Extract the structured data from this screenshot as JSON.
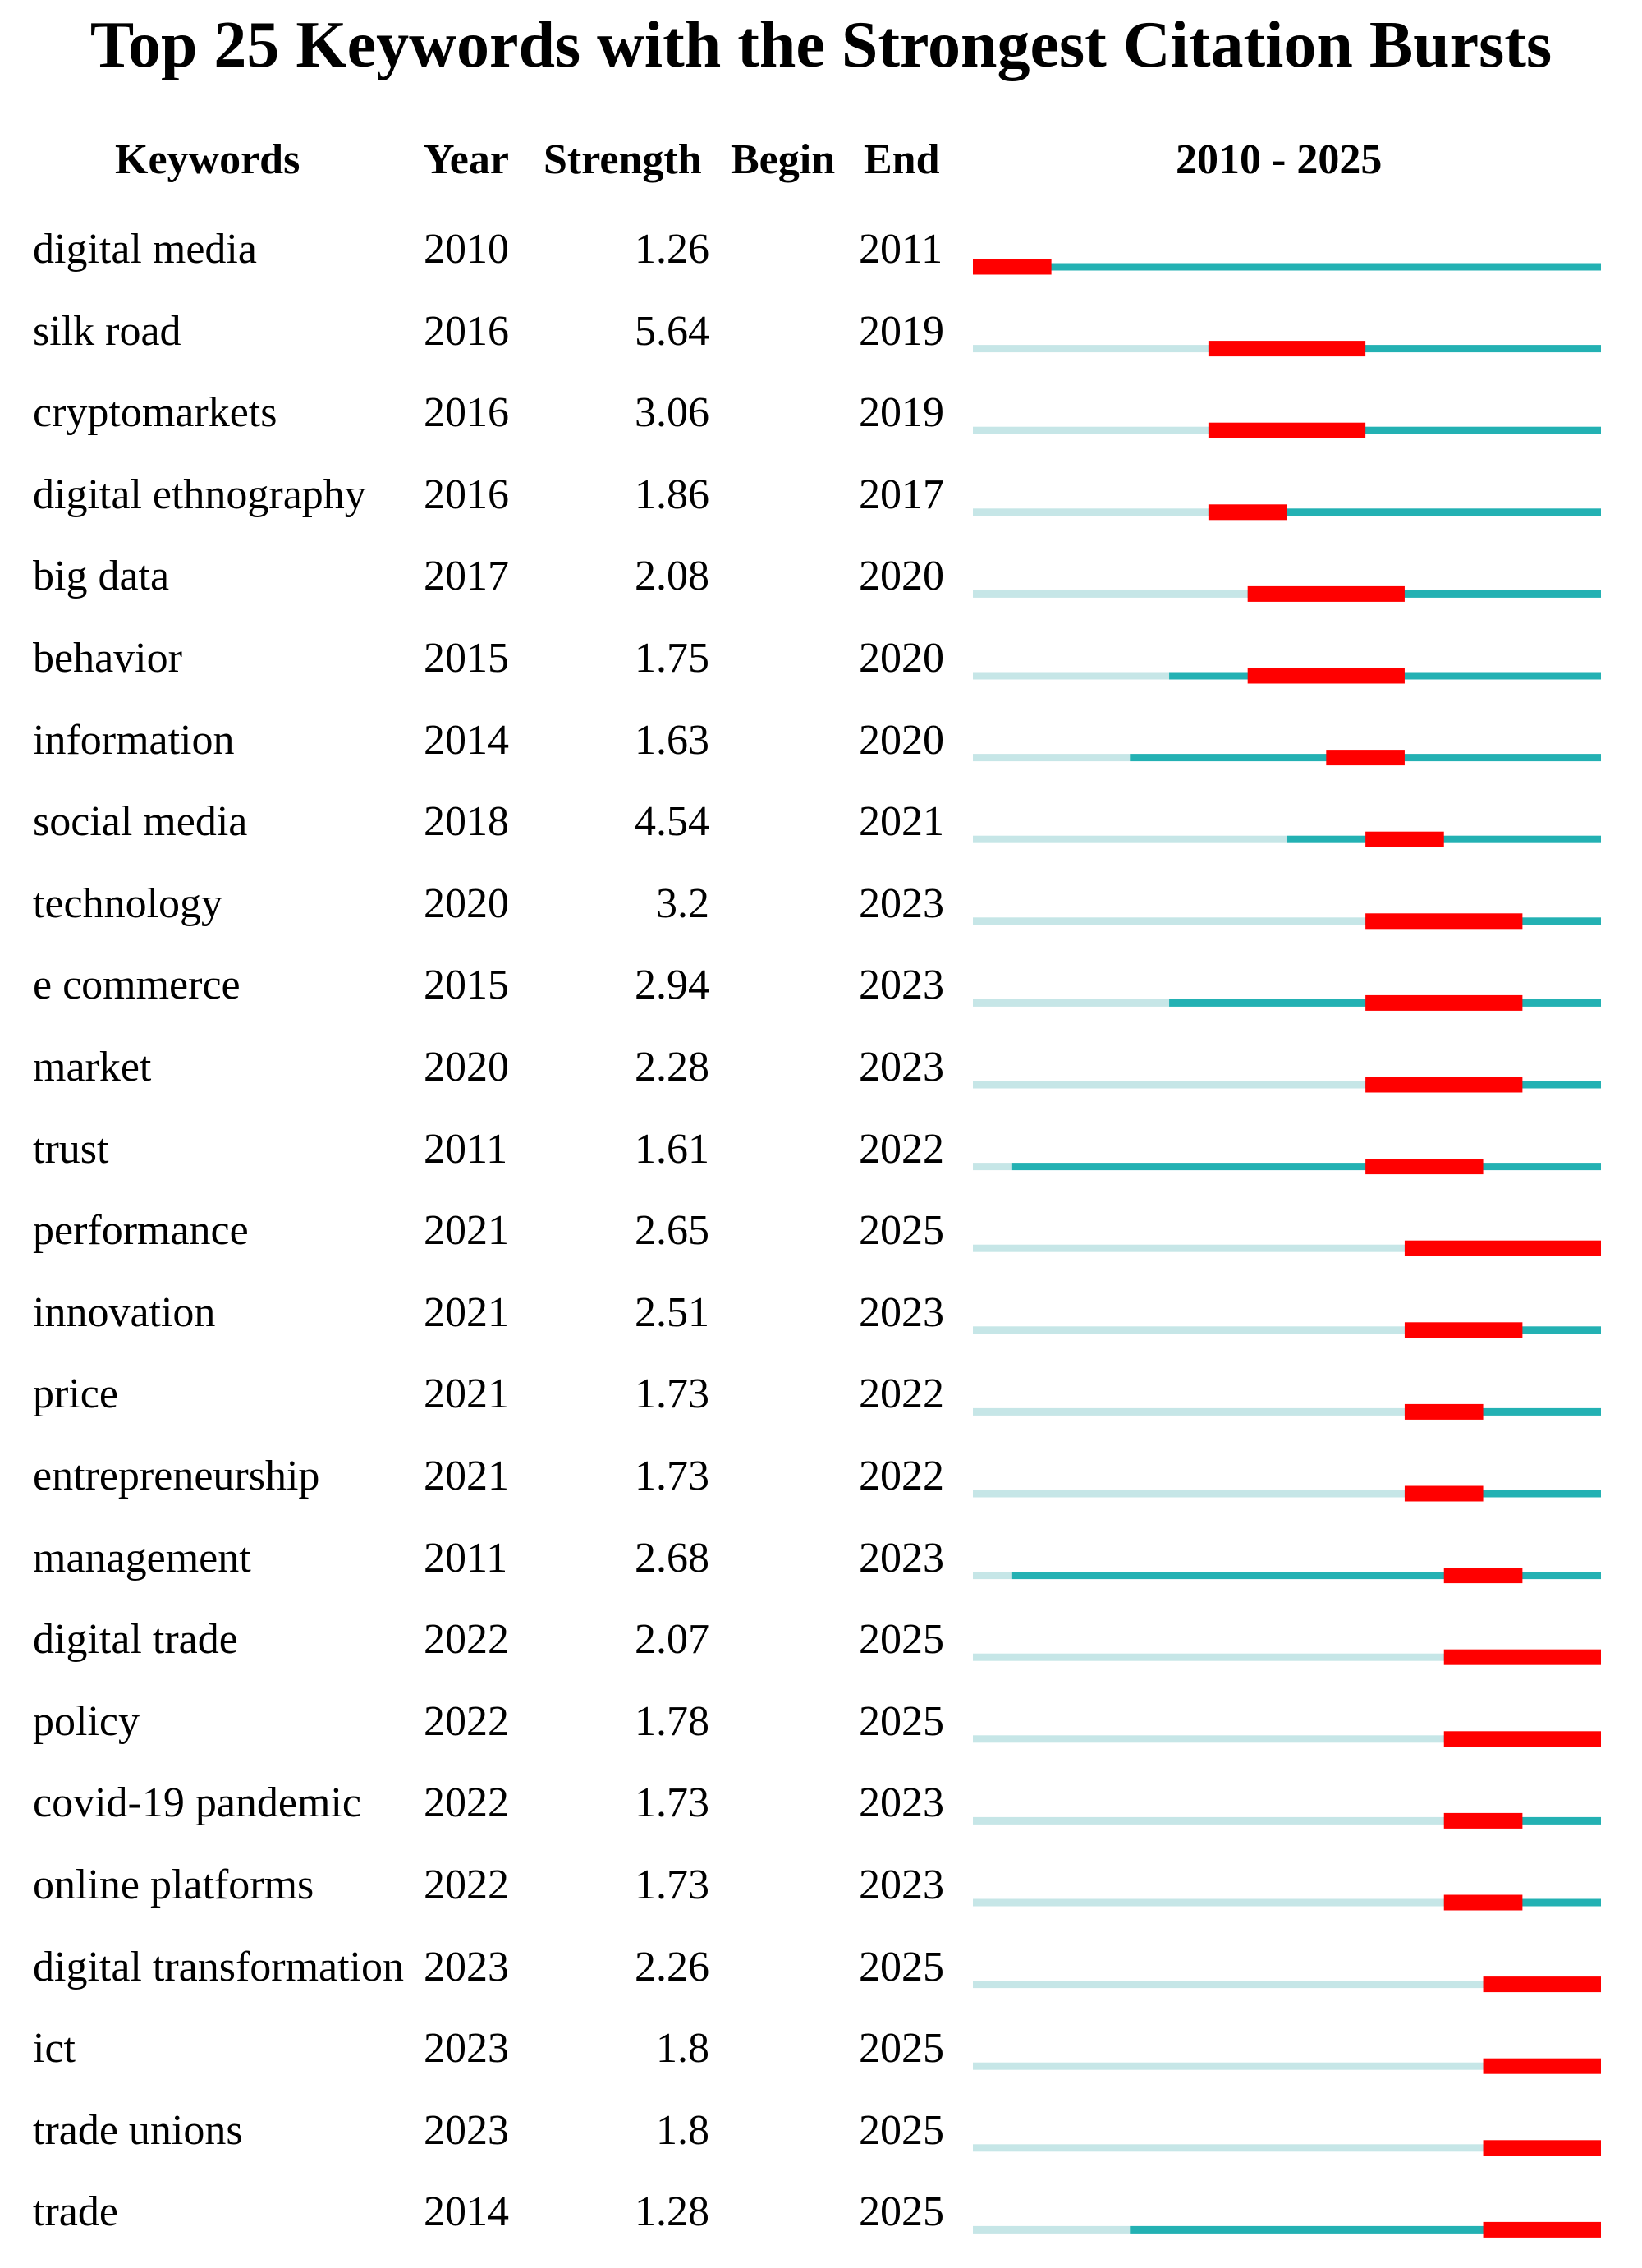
{
  "chart_data": {
    "type": "table",
    "title": "Top 25 Keywords with the Strongest Citation Bursts",
    "columns": [
      "Keywords",
      "Year",
      "Strength",
      "Begin",
      "End"
    ],
    "range_label": "2010 - 2025",
    "range": [
      2010,
      2025
    ],
    "colors": {
      "burst": "#ff0000",
      "active": "#23b1b3",
      "inactive": "#c6e6e7"
    },
    "rows": [
      {
        "keyword": "digital media",
        "year": 2010,
        "strength": "1.26",
        "begin": 2010,
        "end": 2011
      },
      {
        "keyword": "silk road",
        "year": 2016,
        "strength": "5.64",
        "begin": 2016,
        "end": 2019
      },
      {
        "keyword": "cryptomarkets",
        "year": 2016,
        "strength": "3.06",
        "begin": 2016,
        "end": 2019
      },
      {
        "keyword": "digital ethnography",
        "year": 2016,
        "strength": "1.86",
        "begin": 2016,
        "end": 2017
      },
      {
        "keyword": "big data",
        "year": 2017,
        "strength": "2.08",
        "begin": 2017,
        "end": 2020
      },
      {
        "keyword": "behavior",
        "year": 2015,
        "strength": "1.75",
        "begin": 2017,
        "end": 2020
      },
      {
        "keyword": "information",
        "year": 2014,
        "strength": "1.63",
        "begin": 2019,
        "end": 2020
      },
      {
        "keyword": "social media",
        "year": 2018,
        "strength": "4.54",
        "begin": 2020,
        "end": 2021
      },
      {
        "keyword": "technology",
        "year": 2020,
        "strength": "3.2",
        "begin": 2020,
        "end": 2023
      },
      {
        "keyword": "e commerce",
        "year": 2015,
        "strength": "2.94",
        "begin": 2020,
        "end": 2023
      },
      {
        "keyword": "market",
        "year": 2020,
        "strength": "2.28",
        "begin": 2020,
        "end": 2023
      },
      {
        "keyword": "trust",
        "year": 2011,
        "strength": "1.61",
        "begin": 2020,
        "end": 2022
      },
      {
        "keyword": "performance",
        "year": 2021,
        "strength": "2.65",
        "begin": 2021,
        "end": 2025
      },
      {
        "keyword": "innovation",
        "year": 2021,
        "strength": "2.51",
        "begin": 2021,
        "end": 2023
      },
      {
        "keyword": "price",
        "year": 2021,
        "strength": "1.73",
        "begin": 2021,
        "end": 2022
      },
      {
        "keyword": "entrepreneurship",
        "year": 2021,
        "strength": "1.73",
        "begin": 2021,
        "end": 2022
      },
      {
        "keyword": "management",
        "year": 2011,
        "strength": "2.68",
        "begin": 2022,
        "end": 2023
      },
      {
        "keyword": "digital trade",
        "year": 2022,
        "strength": "2.07",
        "begin": 2022,
        "end": 2025
      },
      {
        "keyword": "policy",
        "year": 2022,
        "strength": "1.78",
        "begin": 2022,
        "end": 2025
      },
      {
        "keyword": "covid-19 pandemic",
        "year": 2022,
        "strength": "1.73",
        "begin": 2022,
        "end": 2023
      },
      {
        "keyword": "online platforms",
        "year": 2022,
        "strength": "1.73",
        "begin": 2022,
        "end": 2023
      },
      {
        "keyword": "digital transformation",
        "year": 2023,
        "strength": "2.26",
        "begin": 2023,
        "end": 2025
      },
      {
        "keyword": "ict",
        "year": 2023,
        "strength": "1.8",
        "begin": 2023,
        "end": 2025
      },
      {
        "keyword": "trade unions",
        "year": 2023,
        "strength": "1.8",
        "begin": 2023,
        "end": 2025
      },
      {
        "keyword": "trade",
        "year": 2014,
        "strength": "1.28",
        "begin": 2023,
        "end": 2025
      }
    ]
  }
}
